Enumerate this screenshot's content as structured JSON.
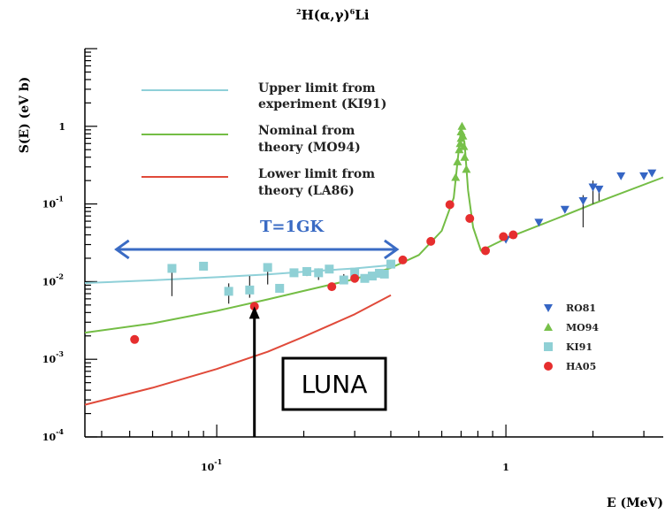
{
  "chart_data": {
    "type": "scatter",
    "title_parts": {
      "sup1": "2",
      "main": "H(α,γ)",
      "sup2": "6",
      "tail": "Li"
    },
    "xlabel": "E (MeV)",
    "ylabel": "S(E) (eV b)",
    "x_scale": "log",
    "y_scale": "log",
    "xlim": [
      0.035,
      3.5
    ],
    "ylim": [
      0.0001,
      10
    ],
    "x_ticks": [
      {
        "value": 0.1,
        "base": "10",
        "exp": "-1"
      },
      {
        "value": 1,
        "base": "1",
        "exp": ""
      }
    ],
    "y_ticks": [
      {
        "value": 1,
        "base": "1",
        "exp": ""
      },
      {
        "value": 0.1,
        "base": "10",
        "exp": "-1"
      },
      {
        "value": 0.01,
        "base": "10",
        "exp": "-2"
      },
      {
        "value": 0.001,
        "base": "10",
        "exp": "-3"
      },
      {
        "value": 0.0001,
        "base": "10",
        "exp": "-4"
      }
    ],
    "curves": [
      {
        "name_line1": "Upper limit from",
        "name_line2": "experiment (KI91)",
        "color": "#8fd0d8",
        "points": [
          [
            0.035,
            0.0096
          ],
          [
            0.06,
            0.0104
          ],
          [
            0.1,
            0.0114
          ],
          [
            0.15,
            0.0124
          ],
          [
            0.2,
            0.0134
          ],
          [
            0.3,
            0.0148
          ],
          [
            0.4,
            0.0163
          ]
        ]
      },
      {
        "name_line1": "Nominal from",
        "name_line2": "theory (MO94)",
        "color": "#74bd45",
        "points": [
          [
            0.035,
            0.0022
          ],
          [
            0.06,
            0.0029
          ],
          [
            0.1,
            0.0042
          ],
          [
            0.15,
            0.0059
          ],
          [
            0.2,
            0.0076
          ],
          [
            0.3,
            0.0108
          ],
          [
            0.4,
            0.015
          ],
          [
            0.5,
            0.022
          ],
          [
            0.6,
            0.045
          ],
          [
            0.66,
            0.12
          ],
          [
            0.7,
            0.95
          ],
          [
            0.72,
            0.6
          ],
          [
            0.74,
            0.15
          ],
          [
            0.77,
            0.05
          ],
          [
            0.82,
            0.025
          ],
          [
            1.0,
            0.036
          ],
          [
            1.5,
            0.065
          ],
          [
            2.0,
            0.1
          ],
          [
            3.5,
            0.22
          ]
        ]
      },
      {
        "name_line1": "Lower limit from",
        "name_line2": "theory (LA86)",
        "color": "#e04a3a",
        "points": [
          [
            0.035,
            0.00026
          ],
          [
            0.06,
            0.00043
          ],
          [
            0.1,
            0.00075
          ],
          [
            0.15,
            0.00125
          ],
          [
            0.2,
            0.00195
          ],
          [
            0.3,
            0.0038
          ],
          [
            0.4,
            0.0067
          ]
        ]
      }
    ],
    "series": [
      {
        "name": "RO81",
        "marker": "triangle-down",
        "color": "#3565c4",
        "points": [
          [
            1.0,
            0.035
          ],
          [
            1.3,
            0.058
          ],
          [
            1.6,
            0.085
          ],
          [
            1.85,
            0.11
          ],
          [
            2.0,
            0.165
          ],
          [
            2.1,
            0.155
          ],
          [
            2.5,
            0.23
          ],
          [
            3.0,
            0.23
          ],
          [
            3.2,
            0.25
          ]
        ],
        "error_bars": [
          [
            1.85,
            0.05,
            0.13
          ],
          [
            2.0,
            0.1,
            0.2
          ],
          [
            2.1,
            0.11,
            0.17
          ]
        ]
      },
      {
        "name": "MO94",
        "marker": "triangle-up",
        "color": "#77c04a",
        "points": [
          [
            0.67,
            0.22
          ],
          [
            0.68,
            0.35
          ],
          [
            0.69,
            0.5
          ],
          [
            0.695,
            0.6
          ],
          [
            0.7,
            0.7
          ],
          [
            0.7,
            0.85
          ],
          [
            0.705,
            1.0
          ],
          [
            0.71,
            0.75
          ],
          [
            0.715,
            0.55
          ],
          [
            0.72,
            0.4
          ],
          [
            0.73,
            0.28
          ]
        ],
        "error_bars": []
      },
      {
        "name": "KI91",
        "marker": "square",
        "color": "#8fd0d5",
        "points": [
          [
            0.07,
            0.0148
          ],
          [
            0.09,
            0.0158
          ],
          [
            0.11,
            0.0075
          ],
          [
            0.13,
            0.0078
          ],
          [
            0.15,
            0.0152
          ],
          [
            0.165,
            0.0082
          ],
          [
            0.185,
            0.013
          ],
          [
            0.205,
            0.0135
          ],
          [
            0.225,
            0.013
          ],
          [
            0.245,
            0.0145
          ],
          [
            0.275,
            0.0105
          ],
          [
            0.3,
            0.0132
          ],
          [
            0.325,
            0.011
          ],
          [
            0.345,
            0.0118
          ],
          [
            0.365,
            0.0128
          ],
          [
            0.38,
            0.0125
          ],
          [
            0.4,
            0.0168
          ]
        ],
        "error_bars": [
          [
            0.07,
            0.0065,
            0.0152
          ],
          [
            0.11,
            0.0052,
            0.0095
          ],
          [
            0.13,
            0.0062,
            0.0118
          ],
          [
            0.15,
            0.0092,
            0.0168
          ],
          [
            0.185,
            0.0118,
            0.0147
          ],
          [
            0.205,
            0.0118,
            0.0148
          ],
          [
            0.225,
            0.0105,
            0.0148
          ],
          [
            0.275,
            0.0095,
            0.0125
          ]
        ]
      },
      {
        "name": "HA05",
        "marker": "circle",
        "color": "#e62e2e",
        "points": [
          [
            0.052,
            0.0018
          ],
          [
            0.135,
            0.0048
          ],
          [
            0.25,
            0.0086
          ],
          [
            0.3,
            0.011
          ],
          [
            0.44,
            0.019
          ],
          [
            0.55,
            0.033
          ],
          [
            0.64,
            0.098
          ],
          [
            0.75,
            0.065
          ],
          [
            0.85,
            0.025
          ],
          [
            0.98,
            0.038
          ],
          [
            1.06,
            0.04
          ]
        ],
        "error_bars": []
      }
    ],
    "annotations": [
      {
        "kind": "double-arrow",
        "text": "T=1GK",
        "color": "#3a6bc4",
        "x_from": 0.045,
        "x_to": 0.42,
        "y": 0.026
      },
      {
        "kind": "boxed-arrow",
        "text": "LUNA",
        "color": "#000000",
        "x": 0.135,
        "y_from": 0.0001,
        "y_to": 0.0048
      }
    ],
    "legend_placement": "bottom-right",
    "grid": false
  }
}
